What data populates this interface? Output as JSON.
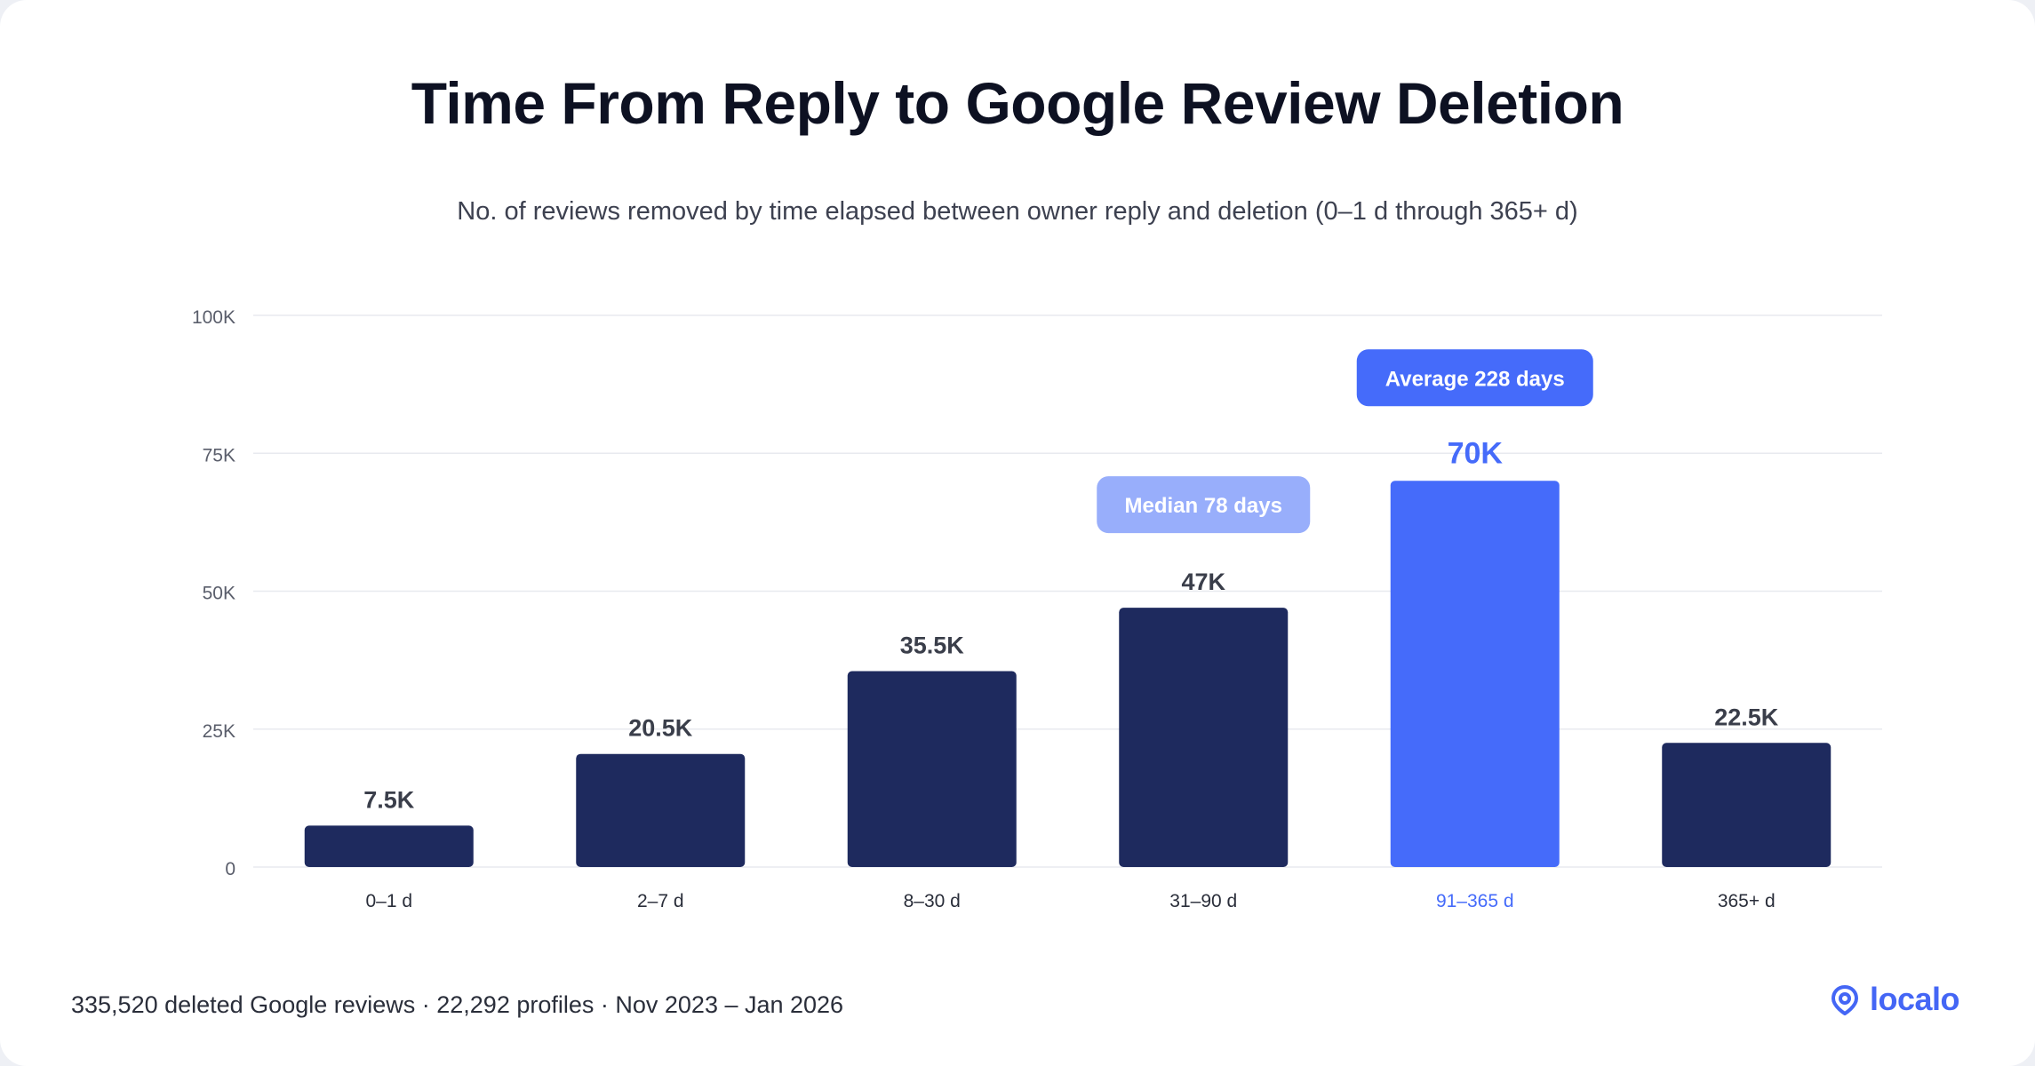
{
  "chart_data": {
    "type": "bar",
    "title": "Time From Reply to Google Review Deletion",
    "subtitle": "No. of reviews removed by time elapsed between owner reply and deletion (0–1 d through 365+ d)",
    "categories": [
      "0–1 d",
      "2–7 d",
      "8–30 d",
      "31–90 d",
      "91–365 d",
      "365+ d"
    ],
    "values": [
      7500,
      20500,
      35500,
      47000,
      70000,
      22500
    ],
    "value_labels": [
      "7.5K",
      "20.5K",
      "35.5K",
      "47K",
      "70K",
      "22.5K"
    ],
    "ylim": [
      0,
      100000
    ],
    "yticks": [
      0,
      25000,
      50000,
      75000,
      100000
    ],
    "ytick_labels": [
      "0",
      "25K",
      "50K",
      "75K",
      "100K"
    ],
    "highlight_index": 4,
    "grid": true,
    "annotations": [
      {
        "text": "Median 78 days",
        "category_index": 3
      },
      {
        "text": "Average 228 days",
        "category_index": 4
      }
    ],
    "colors": {
      "bar": "#1e2a5e",
      "highlight": "#456bfa",
      "median_badge": "#98aefb",
      "average_badge": "#456bfa",
      "grid": "#e8eaef",
      "tick_label": "#5a5e6b",
      "value_label": "#3a3e4a"
    }
  },
  "footer": {
    "note": "335,520 deleted Google reviews · 22,292 profiles · Nov 2023 – Jan 2026"
  },
  "brand": {
    "name": "localo",
    "icon": "location-pin-icon"
  }
}
